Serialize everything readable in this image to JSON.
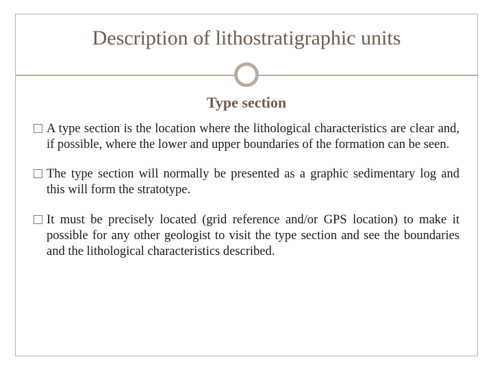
{
  "colors": {
    "title_color": "#6b5d50",
    "subtitle_color": "#6b5d50",
    "border_color": "#b8aca0",
    "text_color": "#1a1a1a",
    "background": "#ffffff"
  },
  "typography": {
    "title_fontsize": 30,
    "subtitle_fontsize": 22,
    "body_fontsize": 18.5,
    "font_family": "Georgia, serif"
  },
  "title": "Description of lithostratigraphic units",
  "subtitle": "Type section",
  "bullets": [
    "A type section is the location where the lithological characteristics are clear and, if possible, where the lower and upper boundaries of the formation can be seen.",
    "The type section will normally be presented as a graphic sedimentary log and this will form the stratotype.",
    "It must be precisely located (grid reference and/or GPS location) to make it possible for any other geologist to visit the type section and see the boundaries and the lithological characteristics described."
  ],
  "layout": {
    "slide_width": 720,
    "slide_height": 540,
    "divider_circle_diameter": 36,
    "divider_circle_border": 5,
    "bullet_marker_size": 13
  }
}
